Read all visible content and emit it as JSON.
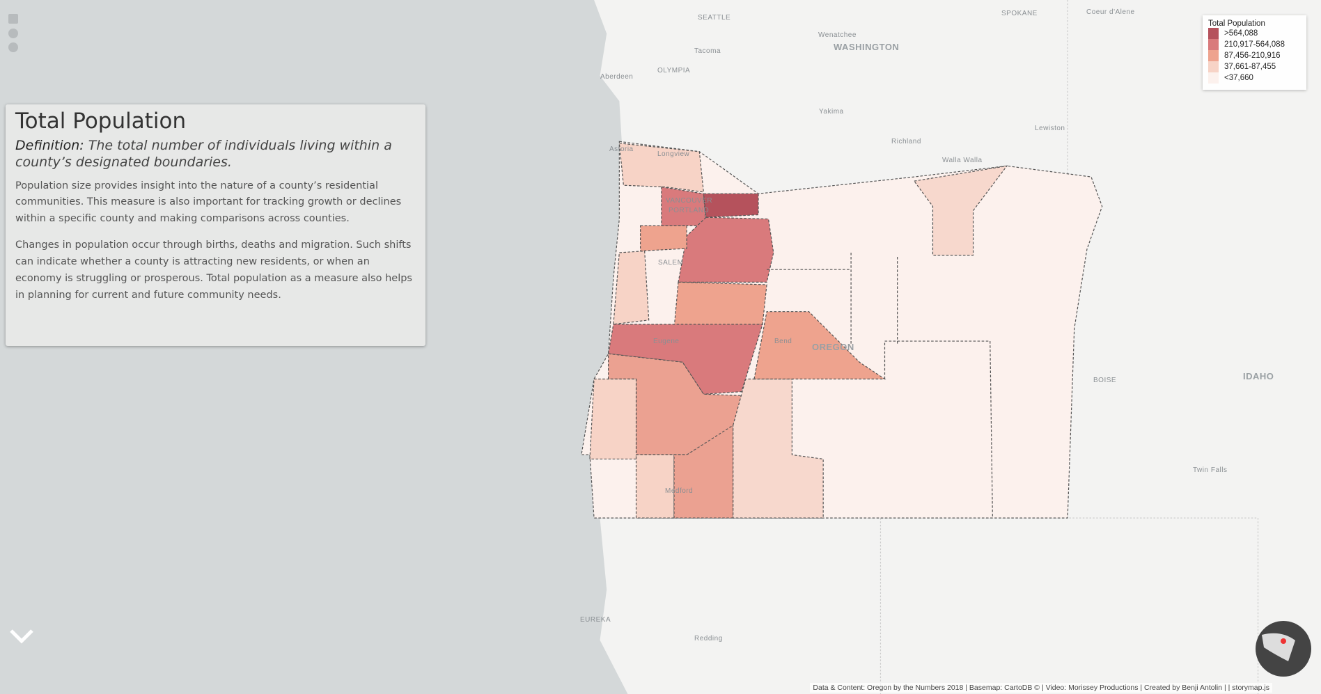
{
  "panel": {
    "title": "Total Population",
    "definition_label": "Definition:",
    "definition": "The total number of individuals living within a county’s designated boundaries.",
    "paragraphs": [
      "Population size provides insight into the nature of a county’s residential communities. This measure is also important for tracking growth or declines within a specific county and making comparisons across counties.",
      "Changes in population occur through births, deaths and migration. Such shifts can indicate whether a county is attracting new residents, or when an economy is struggling or prosperous. Total population as a measure also helps in planning for current and future community needs."
    ]
  },
  "legend": {
    "title": "Total Population",
    "items": [
      {
        "label": ">564,088",
        "color": "#b5525c"
      },
      {
        "label": "210,917-564,088",
        "color": "#d97a7c"
      },
      {
        "label": "87,456-210,916",
        "color": "#eea38e"
      },
      {
        "label": "37,661-87,455",
        "color": "#f7d3c6"
      },
      {
        "label": "<37,660",
        "color": "#fcf1ed"
      }
    ]
  },
  "map_labels": [
    "SEATTLE",
    "SPOKANE",
    "Coeur d'Alene",
    "Wenatchee",
    "WASHINGTON",
    "Tacoma",
    "OLYMPIA",
    "Aberdeen",
    "Yakima",
    "Richland",
    "Lewiston",
    "Walla Walla",
    "Astoria",
    "Longview",
    "VANCOUVER",
    "PORTLAND",
    "SALEM",
    "Eugene",
    "Bend",
    "OREGON",
    "BOISE",
    "IDAHO",
    "Twin Falls",
    "Medford",
    "EUREKA",
    "Redding"
  ],
  "attribution": "Data & Content: Oregon by the Numbers 2018 | Basemap: CartoDB © | Video: Morissey Productions | Created by Benji Antolin | | storymap.js"
}
